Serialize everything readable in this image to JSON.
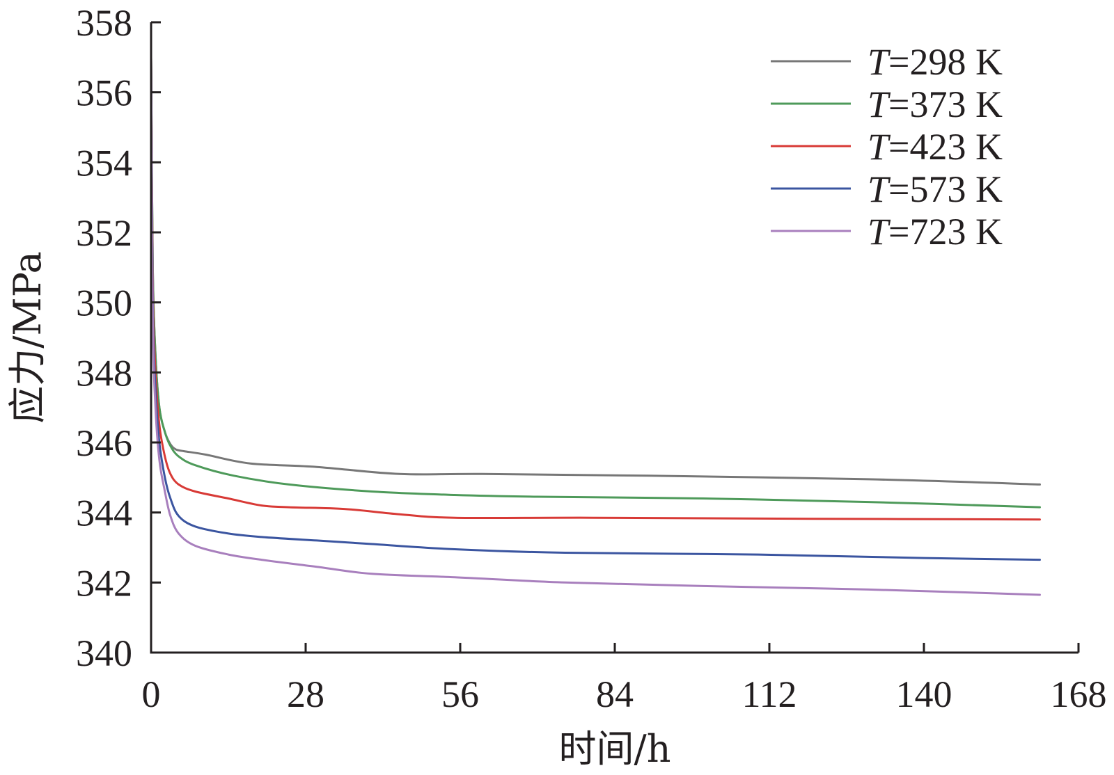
{
  "chart_data": {
    "type": "line",
    "xlabel": "时间/h",
    "ylabel": "应力/MPa",
    "xlim": [
      0,
      168
    ],
    "ylim": [
      340,
      358
    ],
    "xticks": [
      "0",
      "28",
      "56",
      "84",
      "112",
      "140",
      "168"
    ],
    "yticks": [
      "340",
      "342",
      "344",
      "346",
      "348",
      "350",
      "352",
      "354",
      "356",
      "358"
    ],
    "legend_position": "top-right",
    "grid": false,
    "series": [
      {
        "name": "T=298 K",
        "name_var": "T",
        "name_rest": "=298 K",
        "color": "#777777",
        "x": [
          0,
          0.3,
          0.8,
          1.5,
          2.5,
          3.5,
          4.5,
          6,
          10,
          18,
          30,
          45,
          60,
          90,
          130,
          161
        ],
        "y": [
          357,
          351,
          348.5,
          347,
          346.3,
          345.95,
          345.8,
          345.75,
          345.65,
          345.4,
          345.3,
          345.1,
          345.1,
          345.05,
          344.95,
          344.8
        ]
      },
      {
        "name": "T=373 K",
        "name_var": "T",
        "name_rest": "=373 K",
        "color": "#4e9a5a",
        "x": [
          0,
          0.3,
          0.8,
          1.5,
          2.5,
          3.5,
          5,
          8,
          15,
          25,
          40,
          55,
          70,
          100,
          130,
          161
        ],
        "y": [
          357,
          351,
          348.5,
          347,
          346.3,
          345.9,
          345.6,
          345.35,
          345.05,
          344.8,
          344.6,
          344.5,
          344.45,
          344.4,
          344.3,
          344.15
        ]
      },
      {
        "name": "T=423 K",
        "name_var": "T",
        "name_rest": "=423 K",
        "color": "#d83a36",
        "x": [
          0,
          0.3,
          0.8,
          1.5,
          2.5,
          3.5,
          5,
          8,
          14,
          20,
          25,
          35,
          45,
          55,
          80,
          120,
          161
        ],
        "y": [
          357,
          350.5,
          348,
          346.5,
          345.6,
          345.1,
          344.8,
          344.6,
          344.4,
          344.2,
          344.15,
          344.1,
          343.95,
          343.85,
          343.85,
          343.82,
          343.8
        ]
      },
      {
        "name": "T=573 K",
        "name_var": "T",
        "name_rest": "=573 K",
        "color": "#3b55a0",
        "x": [
          0,
          0.3,
          0.8,
          1.5,
          2.5,
          3.5,
          5,
          8,
          14,
          20,
          30,
          40,
          55,
          75,
          110,
          140,
          161
        ],
        "y": [
          357,
          350,
          347.5,
          346,
          345,
          344.4,
          343.9,
          343.6,
          343.4,
          343.3,
          343.2,
          343.1,
          342.95,
          342.85,
          342.8,
          342.7,
          342.65
        ]
      },
      {
        "name": "T=723 K",
        "name_var": "T",
        "name_rest": "=723 K",
        "color": "#a87fbd",
        "x": [
          0,
          0.3,
          0.8,
          1.5,
          2.5,
          3.5,
          5,
          8,
          14,
          20,
          30,
          40,
          55,
          75,
          100,
          130,
          161
        ],
        "y": [
          357,
          349.5,
          347,
          345.5,
          344.6,
          343.9,
          343.4,
          343.05,
          342.8,
          342.65,
          342.45,
          342.25,
          342.15,
          342.0,
          341.9,
          341.8,
          341.65
        ]
      }
    ]
  }
}
